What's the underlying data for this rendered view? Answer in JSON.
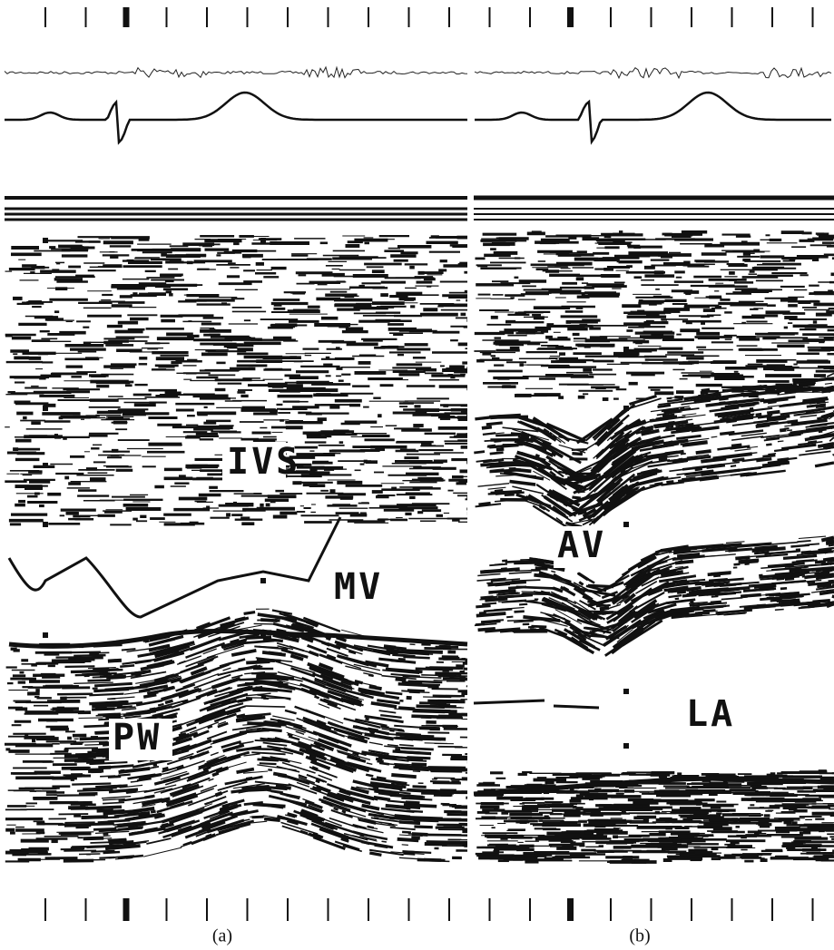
{
  "panels": [
    {
      "labels": [
        "IVS",
        "MV",
        "PW"
      ],
      "caption": "(a)"
    },
    {
      "labels": [
        "AV",
        "LA"
      ],
      "caption": "(b)"
    }
  ]
}
